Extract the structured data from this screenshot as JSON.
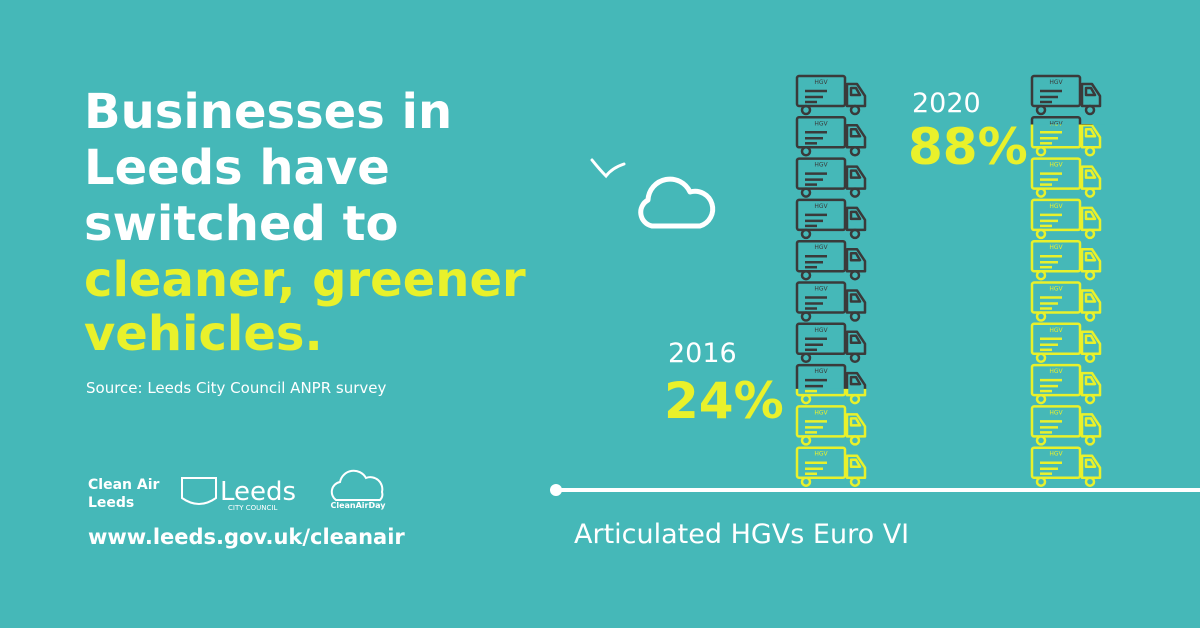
{
  "chart_data": {
    "type": "pictogram",
    "title": [
      "Businesses in",
      "Leeds have",
      "switched to"
    ],
    "title_highlight": [
      "cleaner, greener",
      "vehicles."
    ],
    "source": "Source: Leeds City Council ANPR survey",
    "x_label": "Articulated HGVs Euro VI",
    "categories": [
      "2016",
      "2020"
    ],
    "values": [
      24,
      88
    ],
    "value_labels": [
      "24%",
      "88%"
    ],
    "ylim": [
      0,
      100
    ],
    "icon_label": "HGV",
    "color": "#e9f12b",
    "base_color": "#3a3a3a",
    "footer": {
      "logo_1": [
        "Clean Air",
        "Leeds"
      ],
      "logo_2": "Leeds",
      "logo_2_sub": "CITY COUNCIL",
      "logo_3": "CleanAirDay",
      "url": "www.leeds.gov.uk/cleanair"
    }
  }
}
